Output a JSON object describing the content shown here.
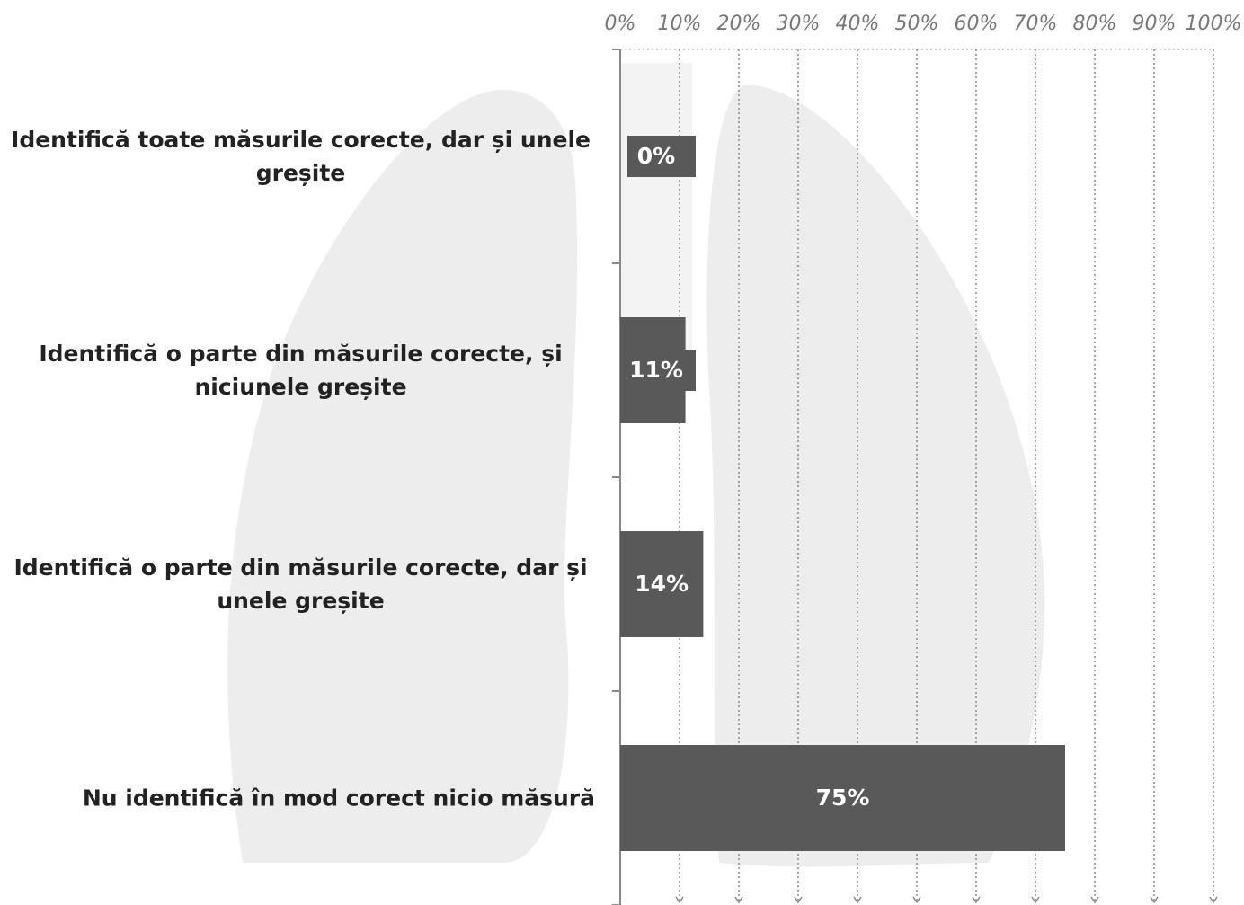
{
  "chart_data": {
    "type": "bar",
    "orientation": "horizontal",
    "categories": [
      "Identifică toate măsurile corecte, dar și unele greșite",
      "Identifică o parte din măsurile corecte, și niciunele greșite",
      "Identifică o parte din măsurile corecte, dar și unele greșite",
      "Nu identifică în mod corect nicio măsură"
    ],
    "values": [
      0,
      11,
      14,
      75
    ],
    "value_labels": [
      "0%",
      "11%",
      "14%",
      "75%"
    ],
    "color": "#595959",
    "xlim": [
      0,
      100
    ],
    "xticks": [
      {
        "value": 0,
        "label": "0%"
      },
      {
        "value": 10,
        "label": "10%"
      },
      {
        "value": 20,
        "label": "20%"
      },
      {
        "value": 30,
        "label": "30%"
      },
      {
        "value": 40,
        "label": "40%"
      },
      {
        "value": 50,
        "label": "50%"
      },
      {
        "value": 60,
        "label": "60%"
      },
      {
        "value": 70,
        "label": "70%"
      },
      {
        "value": 80,
        "label": "80%"
      },
      {
        "value": 90,
        "label": "90%"
      },
      {
        "value": 100,
        "label": "100%"
      }
    ],
    "grid": true
  }
}
